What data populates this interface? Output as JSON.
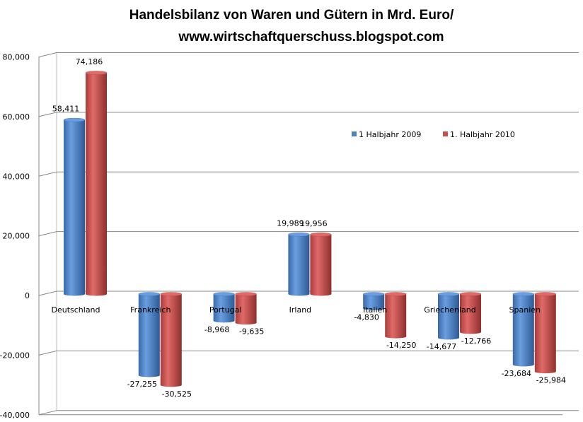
{
  "chart_data": {
    "type": "bar",
    "title": [
      "Handelsbilanz von Waren und Gütern in Mrd. Euro/",
      "www.wirtschaftquerschuss.blogspot.com"
    ],
    "xlabel": "",
    "ylabel": "",
    "categories": [
      "Deutschland",
      "Frankreich",
      "Portugal",
      "Irland",
      "Italien",
      "Griechenland",
      "Spanien"
    ],
    "series": [
      {
        "name": "1 Halbjahr 2009",
        "color": "#4F81BD",
        "values": [
          58411,
          -27255,
          -8968,
          19989,
          -4830,
          -14677,
          -23684
        ],
        "labels": [
          "58,411",
          "-27,255",
          "-8,968",
          "19,989",
          "-4,830",
          "-14,677",
          "-23,684"
        ]
      },
      {
        "name": "1. Halbjahr 2010",
        "color": "#C0504D",
        "values": [
          74186,
          -30525,
          -9635,
          19956,
          -14250,
          -12766,
          -25984
        ],
        "labels": [
          "74,186",
          "-30,525",
          "-9,635",
          "19,956",
          "-14,250",
          "-12,766",
          "-25,984"
        ]
      }
    ],
    "ylim": [
      -40000,
      80000
    ],
    "yticks": [
      -40000,
      -20000,
      0,
      20000,
      40000,
      60000,
      80000
    ],
    "ytick_labels": [
      "-40,000",
      "-20,000",
      "0",
      "20,000",
      "40,000",
      "60,000",
      "80,000"
    ],
    "grid": true,
    "legend": "right"
  }
}
